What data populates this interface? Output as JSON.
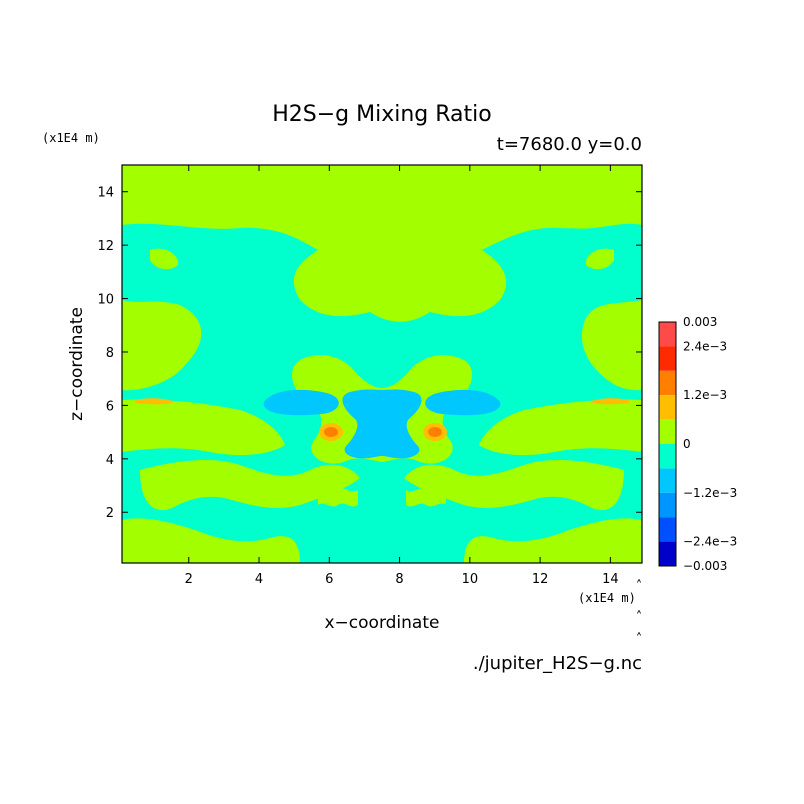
{
  "chart_data": {
    "type": "heatmap",
    "title": "H2S−g Mixing Ratio",
    "subtitle": "t=7680.0 y=0.0",
    "xlabel": "x−coordinate",
    "ylabel": "z−coordinate",
    "x_unit": "(x1E4 m)",
    "z_unit": "(x1E4 m)",
    "source": "./jupiter_H2S−g.nc",
    "xlim": [
      0.1,
      14.9
    ],
    "ylim": [
      0.1,
      15.0
    ],
    "xticks": [
      2,
      4,
      6,
      8,
      10,
      12,
      14
    ],
    "yticks": [
      2,
      4,
      6,
      8,
      10,
      12,
      14
    ],
    "colorbar": {
      "range": [
        -0.003,
        0.003
      ],
      "labels": [
        {
          "value": 0.003,
          "text": "0.003"
        },
        {
          "value": 0.0024,
          "text": "2.4e−3"
        },
        {
          "value": 0.0012,
          "text": "1.2e−3"
        },
        {
          "value": 0,
          "text": "0"
        },
        {
          "value": -0.0012,
          "text": "−1.2e−3"
        },
        {
          "value": -0.0024,
          "text": "−2.4e−3"
        },
        {
          "value": -0.003,
          "text": "−0.003"
        }
      ],
      "levels": [
        {
          "from": 0.0024,
          "to": 0.003,
          "color": "#ff4a4a"
        },
        {
          "from": 0.0018,
          "to": 0.0024,
          "color": "#ff2a00"
        },
        {
          "from": 0.0012,
          "to": 0.0018,
          "color": "#ff7f00"
        },
        {
          "from": 0.0006,
          "to": 0.0012,
          "color": "#ffbf00"
        },
        {
          "from": 0,
          "to": 0.0006,
          "color": "#a3ff00"
        },
        {
          "from": -0.0006,
          "to": 0,
          "color": "#00ffcc"
        },
        {
          "from": -0.0012,
          "to": -0.0006,
          "color": "#00c8ff"
        },
        {
          "from": -0.0018,
          "to": -0.0012,
          "color": "#0096ff"
        },
        {
          "from": -0.0024,
          "to": -0.0018,
          "color": "#0050ff"
        },
        {
          "from": -0.003,
          "to": -0.0024,
          "color": "#0000c8"
        }
      ]
    },
    "field_note_levels": {
      "background": 0.0003,
      "teal": -0.0003,
      "light_blue": -0.0009,
      "orange": 0.0015,
      "yellow": 0.0009
    }
  }
}
